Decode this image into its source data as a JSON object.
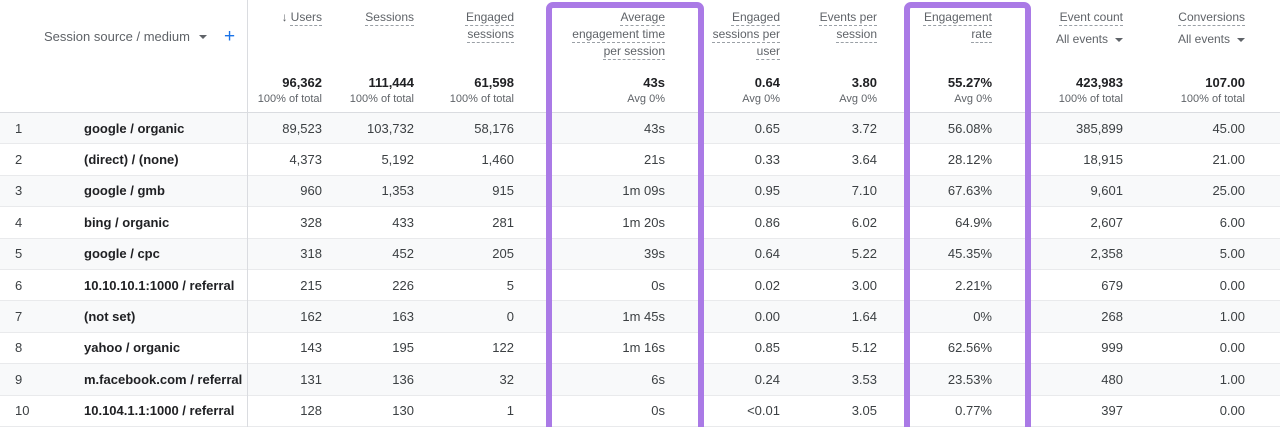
{
  "colors": {
    "highlight_purple": "#aa7ae6",
    "accent_blue": "#1a73e8"
  },
  "icons": {
    "sort_descending": "↓",
    "chevron_down": "chevron-down",
    "add": "+"
  },
  "dimension_header": {
    "label": "Session source / medium",
    "add_button": "+"
  },
  "columns": [
    {
      "id": "users",
      "label": "Users",
      "sorted": true,
      "total": "96,362",
      "total_note": "100% of total",
      "highlighted": false
    },
    {
      "id": "sessions",
      "label": "Sessions",
      "total": "111,444",
      "total_note": "100% of total",
      "highlighted": false
    },
    {
      "id": "engaged-sessions",
      "label": "Engaged sessions",
      "total": "61,598",
      "total_note": "100% of total",
      "highlighted": false
    },
    {
      "id": "avg-engagement-time-per-session",
      "label": "Average engagement time per session",
      "total": "43s",
      "total_note": "Avg 0%",
      "highlighted": true
    },
    {
      "id": "engaged-sessions-per-user",
      "label": "Engaged sessions per user",
      "total": "0.64",
      "total_note": "Avg 0%",
      "highlighted": false
    },
    {
      "id": "events-per-session",
      "label": "Events per session",
      "total": "3.80",
      "total_note": "Avg 0%",
      "highlighted": false
    },
    {
      "id": "engagement-rate",
      "label": "Engagement rate",
      "total": "55.27%",
      "total_note": "Avg 0%",
      "highlighted": true
    },
    {
      "id": "event-count",
      "label": "Event count",
      "dropdown": "All events",
      "total": "423,983",
      "total_note": "100% of total",
      "highlighted": false
    },
    {
      "id": "conversions",
      "label": "Conversions",
      "dropdown": "All events",
      "total": "107.00",
      "total_note": "100% of total",
      "highlighted": false
    }
  ],
  "rows": [
    {
      "index": "1",
      "source_medium": "google / organic",
      "values": [
        "89,523",
        "103,732",
        "58,176",
        "43s",
        "0.65",
        "3.72",
        "56.08%",
        "385,899",
        "45.00"
      ]
    },
    {
      "index": "2",
      "source_medium": "(direct) / (none)",
      "values": [
        "4,373",
        "5,192",
        "1,460",
        "21s",
        "0.33",
        "3.64",
        "28.12%",
        "18,915",
        "21.00"
      ]
    },
    {
      "index": "3",
      "source_medium": "google / gmb",
      "values": [
        "960",
        "1,353",
        "915",
        "1m 09s",
        "0.95",
        "7.10",
        "67.63%",
        "9,601",
        "25.00"
      ]
    },
    {
      "index": "4",
      "source_medium": "bing / organic",
      "values": [
        "328",
        "433",
        "281",
        "1m 20s",
        "0.86",
        "6.02",
        "64.9%",
        "2,607",
        "6.00"
      ]
    },
    {
      "index": "5",
      "source_medium": "google / cpc",
      "values": [
        "318",
        "452",
        "205",
        "39s",
        "0.64",
        "5.22",
        "45.35%",
        "2,358",
        "5.00"
      ]
    },
    {
      "index": "6",
      "source_medium": "10.10.10.1:1000 / referral",
      "values": [
        "215",
        "226",
        "5",
        "0s",
        "0.02",
        "3.00",
        "2.21%",
        "679",
        "0.00"
      ]
    },
    {
      "index": "7",
      "source_medium": "(not set)",
      "values": [
        "162",
        "163",
        "0",
        "1m 45s",
        "0.00",
        "1.64",
        "0%",
        "268",
        "1.00"
      ]
    },
    {
      "index": "8",
      "source_medium": "yahoo / organic",
      "values": [
        "143",
        "195",
        "122",
        "1m 16s",
        "0.85",
        "5.12",
        "62.56%",
        "999",
        "0.00"
      ]
    },
    {
      "index": "9",
      "source_medium": "m.facebook.com / referral",
      "values": [
        "131",
        "136",
        "32",
        "6s",
        "0.24",
        "3.53",
        "23.53%",
        "480",
        "1.00"
      ]
    },
    {
      "index": "10",
      "source_medium": "10.104.1.1:1000 / referral",
      "values": [
        "128",
        "130",
        "1",
        "0s",
        "<0.01",
        "3.05",
        "0.77%",
        "397",
        "0.00"
      ]
    }
  ]
}
